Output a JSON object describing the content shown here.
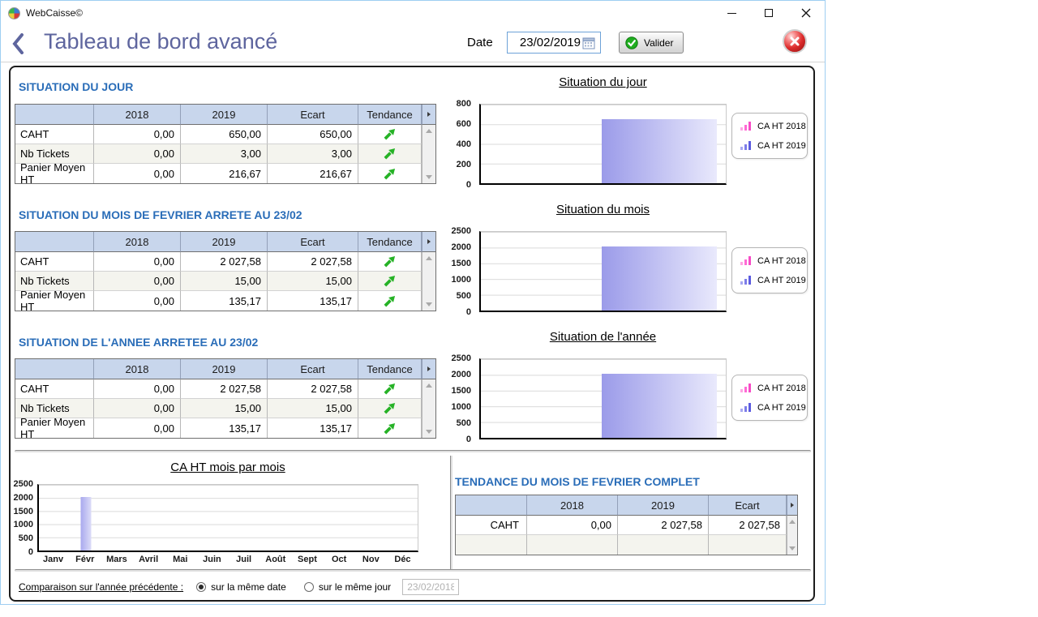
{
  "window": {
    "title": "WebCaisse©"
  },
  "icons": {
    "app_icon": "color-wheel",
    "back": "chevron-left",
    "date_calendar": "calendar-grid",
    "valider_check": "green-check-circle",
    "close_button": "red-x-sphere",
    "trend_up": "green-arrow-up-right",
    "minimize": "minimize-dash",
    "maximize": "maximize-square",
    "close_window": "close-x",
    "legend_2018": "mini-bars-pink",
    "legend_2019": "mini-bars-blue"
  },
  "header": {
    "title": "Tableau de bord avancé",
    "date_label": "Date",
    "date_value": "23/02/2019",
    "valider_label": "Valider"
  },
  "headers": {
    "year1": "2018",
    "year2": "2019",
    "ecart": "Ecart",
    "tendance": "Tendance"
  },
  "sections": [
    {
      "title": "SITUATION DU JOUR",
      "rows": [
        {
          "label": "CAHT",
          "v18": "0,00",
          "v19": "650,00",
          "ecart": "650,00",
          "trend": "up"
        },
        {
          "label": "Nb Tickets",
          "v18": "0,00",
          "v19": "3,00",
          "ecart": "3,00",
          "trend": "up"
        },
        {
          "label": "Panier Moyen HT",
          "v18": "0,00",
          "v19": "216,67",
          "ecart": "216,67",
          "trend": "up"
        }
      ]
    },
    {
      "title": "SITUATION DU MOIS DE FEVRIER ARRETE AU 23/02",
      "rows": [
        {
          "label": "CAHT",
          "v18": "0,00",
          "v19": "2 027,58",
          "ecart": "2 027,58",
          "trend": "up"
        },
        {
          "label": "Nb Tickets",
          "v18": "0,00",
          "v19": "15,00",
          "ecart": "15,00",
          "trend": "up"
        },
        {
          "label": "Panier Moyen HT",
          "v18": "0,00",
          "v19": "135,17",
          "ecart": "135,17",
          "trend": "up"
        }
      ]
    },
    {
      "title": "SITUATION DE L'ANNEE ARRETEE AU 23/02",
      "rows": [
        {
          "label": "CAHT",
          "v18": "0,00",
          "v19": "2 027,58",
          "ecart": "2 027,58",
          "trend": "up"
        },
        {
          "label": "Nb Tickets",
          "v18": "0,00",
          "v19": "15,00",
          "ecart": "15,00",
          "trend": "up"
        },
        {
          "label": "Panier Moyen HT",
          "v18": "0,00",
          "v19": "135,17",
          "ecart": "135,17",
          "trend": "up"
        }
      ]
    }
  ],
  "tendance": {
    "title": "TENDANCE DU MOIS DE FEVRIER COMPLET",
    "rows": [
      {
        "label": "CAHT",
        "v18": "0,00",
        "v19": "2 027,58",
        "ecart": "2 027,58"
      },
      {
        "label": "",
        "v18": "",
        "v19": "",
        "ecart": ""
      }
    ]
  },
  "footer": {
    "label": "Comparaison sur l'année précédente :",
    "radio_same_date": "sur la même date",
    "radio_same_day": "sur le même jour",
    "selected": "sur la même date",
    "compare_date": "23/02/2018"
  },
  "colors": {
    "page_title": "#5e659e",
    "section_title": "#2a6db8",
    "table_header_bg": "#c8d6ec",
    "bar_gradient_start": "#9b9be9",
    "bar_gradient_end": "#e9e9fc",
    "trend_green": "#26b226",
    "legend_2018_pink": "#ff6ad5",
    "legend_2019_blue": "#7d7de8"
  },
  "chart_data": [
    {
      "id": "situation_jour",
      "type": "bar",
      "title": "Situation du jour",
      "categories": [
        ""
      ],
      "series": [
        {
          "name": "CA HT 2018",
          "values": [
            0
          ]
        },
        {
          "name": "CA HT 2019",
          "values": [
            650
          ]
        }
      ],
      "ylim": [
        0,
        800
      ],
      "yticks": [
        0,
        200,
        400,
        600,
        800
      ],
      "grid": true,
      "legend_position": "right"
    },
    {
      "id": "situation_mois",
      "type": "bar",
      "title": "Situation du mois",
      "categories": [
        ""
      ],
      "series": [
        {
          "name": "CA HT 2018",
          "values": [
            0
          ]
        },
        {
          "name": "CA HT 2019",
          "values": [
            2027.58
          ]
        }
      ],
      "ylim": [
        0,
        2500
      ],
      "yticks": [
        0,
        500,
        1000,
        1500,
        2000,
        2500
      ],
      "grid": true,
      "legend_position": "right"
    },
    {
      "id": "situation_annee",
      "type": "bar",
      "title": "Situation de l'année",
      "categories": [
        ""
      ],
      "series": [
        {
          "name": "CA HT 2018",
          "values": [
            0
          ]
        },
        {
          "name": "CA HT 2019",
          "values": [
            2027.58
          ]
        }
      ],
      "ylim": [
        0,
        2500
      ],
      "yticks": [
        0,
        500,
        1000,
        1500,
        2000,
        2500
      ],
      "grid": true,
      "legend_position": "right"
    },
    {
      "id": "ca_ht_mois_par_mois",
      "type": "bar",
      "title": "CA HT mois par mois",
      "categories": [
        "Janv",
        "Févr",
        "Mars",
        "Avril",
        "Mai",
        "Juin",
        "Juil",
        "Août",
        "Sept",
        "Oct",
        "Nov",
        "Déc"
      ],
      "values": [
        0,
        2027.58,
        0,
        0,
        0,
        0,
        0,
        0,
        0,
        0,
        0,
        0
      ],
      "ylim": [
        0,
        2500
      ],
      "yticks": [
        0,
        500,
        1000,
        1500,
        2000,
        2500
      ],
      "grid": true,
      "legend_position": "none"
    }
  ]
}
